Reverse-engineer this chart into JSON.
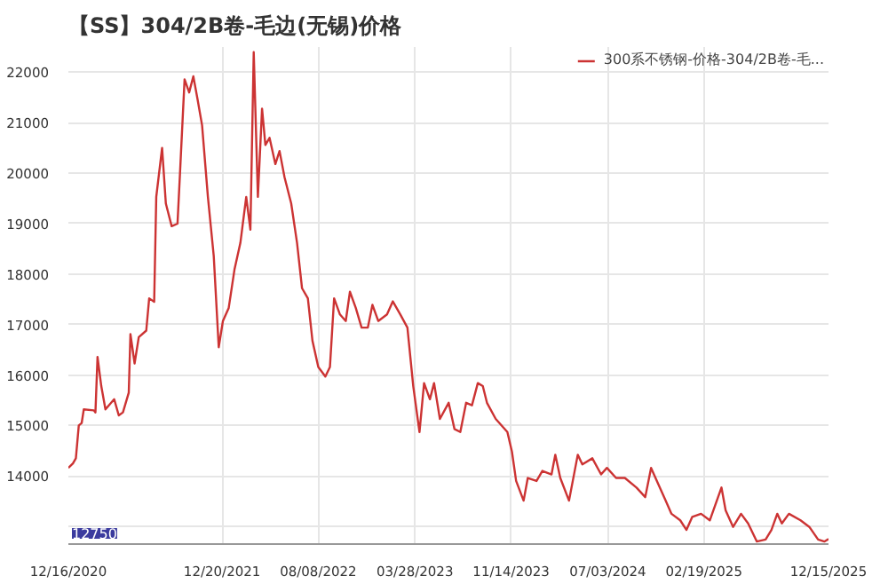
{
  "chart_data": {
    "type": "line",
    "title": "【SS】304/2B卷-毛边(无锡)价格",
    "series": [
      {
        "name": "300系不锈钢-价格-304/2B卷-毛...",
        "color": "#cc3333",
        "x": [
          "2020-12-16",
          "2020-12-27",
          "2021-01-03",
          "2021-01-10",
          "2021-01-17",
          "2021-01-22",
          "2021-02-15",
          "2021-02-19",
          "2021-02-24",
          "2021-03-05",
          "2021-03-15",
          "2021-04-05",
          "2021-04-16",
          "2021-04-26",
          "2021-05-10",
          "2021-05-14",
          "2021-05-24",
          "2021-06-03",
          "2021-06-21",
          "2021-06-28",
          "2021-07-10",
          "2021-07-15",
          "2021-07-29",
          "2021-08-07",
          "2021-08-21",
          "2021-09-04",
          "2021-09-10",
          "2021-09-21",
          "2021-10-02",
          "2021-10-12",
          "2021-10-22",
          "2021-11-02",
          "2021-11-16",
          "2021-11-30",
          "2021-12-12",
          "2021-12-22",
          "2022-01-05",
          "2022-01-19",
          "2022-02-02",
          "2022-02-16",
          "2022-02-26",
          "2022-03-06",
          "2022-03-16",
          "2022-03-26",
          "2022-04-03",
          "2022-04-13",
          "2022-04-27",
          "2022-05-07",
          "2022-05-19",
          "2022-06-04",
          "2022-06-18",
          "2022-06-30",
          "2022-07-14",
          "2022-07-25",
          "2022-08-08",
          "2022-08-25",
          "2022-09-05",
          "2022-09-15",
          "2022-09-29",
          "2022-10-13",
          "2022-10-23",
          "2022-11-06",
          "2022-11-20",
          "2022-12-05",
          "2022-12-16",
          "2022-12-30",
          "2023-01-20",
          "2023-02-03",
          "2023-02-21",
          "2023-03-10",
          "2023-03-24",
          "2023-04-08",
          "2023-04-19",
          "2023-05-03",
          "2023-05-13",
          "2023-05-27",
          "2023-06-17",
          "2023-07-01",
          "2023-07-15",
          "2023-07-29",
          "2023-08-12",
          "2023-08-26",
          "2023-09-07",
          "2023-09-17",
          "2023-10-08",
          "2023-11-05",
          "2023-11-16",
          "2023-11-26",
          "2023-12-14",
          "2023-12-24",
          "2024-01-14",
          "2024-01-28",
          "2024-02-19",
          "2024-02-28",
          "2024-03-11",
          "2024-04-01",
          "2024-04-22",
          "2024-05-03",
          "2024-05-27",
          "2024-06-17",
          "2024-07-01",
          "2024-07-23",
          "2024-08-13",
          "2024-09-10",
          "2024-10-01",
          "2024-10-15",
          "2024-10-29",
          "2024-11-19",
          "2024-12-03",
          "2024-12-24",
          "2025-01-08",
          "2025-01-22",
          "2025-02-12",
          "2025-03-05",
          "2025-04-02",
          "2025-04-12",
          "2025-04-30",
          "2025-05-19",
          "2025-06-05",
          "2025-06-26",
          "2025-07-17",
          "2025-07-31",
          "2025-08-14",
          "2025-08-25",
          "2025-09-11",
          "2025-10-09",
          "2025-10-30",
          "2025-11-20",
          "2025-12-05",
          "2025-12-15"
        ],
        "values": [
          14160,
          14250,
          14350,
          15000,
          15050,
          15320,
          15300,
          15260,
          16360,
          15780,
          15320,
          15520,
          15200,
          15260,
          15650,
          16810,
          16230,
          16750,
          16880,
          17520,
          17450,
          19530,
          20500,
          19400,
          18950,
          19000,
          20000,
          21860,
          21600,
          21920,
          21470,
          20950,
          19530,
          18360,
          16550,
          17070,
          17330,
          18100,
          18620,
          19530,
          18880,
          22400,
          19530,
          21280,
          20560,
          20700,
          20180,
          20440,
          19920,
          19400,
          18620,
          17720,
          17520,
          16680,
          16160,
          15970,
          16160,
          17520,
          17200,
          17070,
          17650,
          17330,
          16940,
          16940,
          17390,
          17070,
          17200,
          17460,
          17200,
          16940,
          15780,
          14870,
          15840,
          15520,
          15840,
          15130,
          15450,
          14930,
          14870,
          15450,
          15400,
          15840,
          15780,
          15450,
          15130,
          14870,
          14480,
          13900,
          13510,
          13960,
          13900,
          14100,
          14030,
          14420,
          13960,
          13510,
          14420,
          14230,
          14350,
          14030,
          14160,
          13960,
          13960,
          13770,
          13580,
          14160,
          13900,
          13510,
          13250,
          13120,
          12930,
          13190,
          13250,
          13120,
          13770,
          13320,
          12990,
          13250,
          13060,
          12700,
          12740,
          12930,
          13250,
          13060,
          13250,
          13120,
          12990,
          12740,
          12700,
          12750
        ]
      }
    ],
    "ylim": [
      12650,
      22500
    ],
    "yticks": [
      {
        "value": 13000,
        "label": null
      },
      14000,
      15000,
      16000,
      17000,
      18000,
      19000,
      20000,
      21000,
      22000
    ],
    "xlim": [
      "2020-12-16",
      "2025-12-15"
    ],
    "xticks": [
      {
        "value": "2020-12-16",
        "label": "12/16/2020"
      },
      {
        "value": "2021-12-20",
        "label": "12/20/2021"
      },
      {
        "value": "2022-08-08",
        "label": "08/08/2022"
      },
      {
        "value": "2023-03-28",
        "label": "03/28/2023"
      },
      {
        "value": "2023-11-14",
        "label": "11/14/2023"
      },
      {
        "value": "2024-07-03",
        "label": "07/03/2024"
      },
      {
        "value": "2025-02-19",
        "label": "02/19/2025"
      },
      {
        "value": "2025-12-15",
        "label": "12/15/2025"
      }
    ],
    "annotations": [
      "12750"
    ],
    "grid": true,
    "legend": "top right",
    "marker": "none",
    "line_style": "solid"
  }
}
